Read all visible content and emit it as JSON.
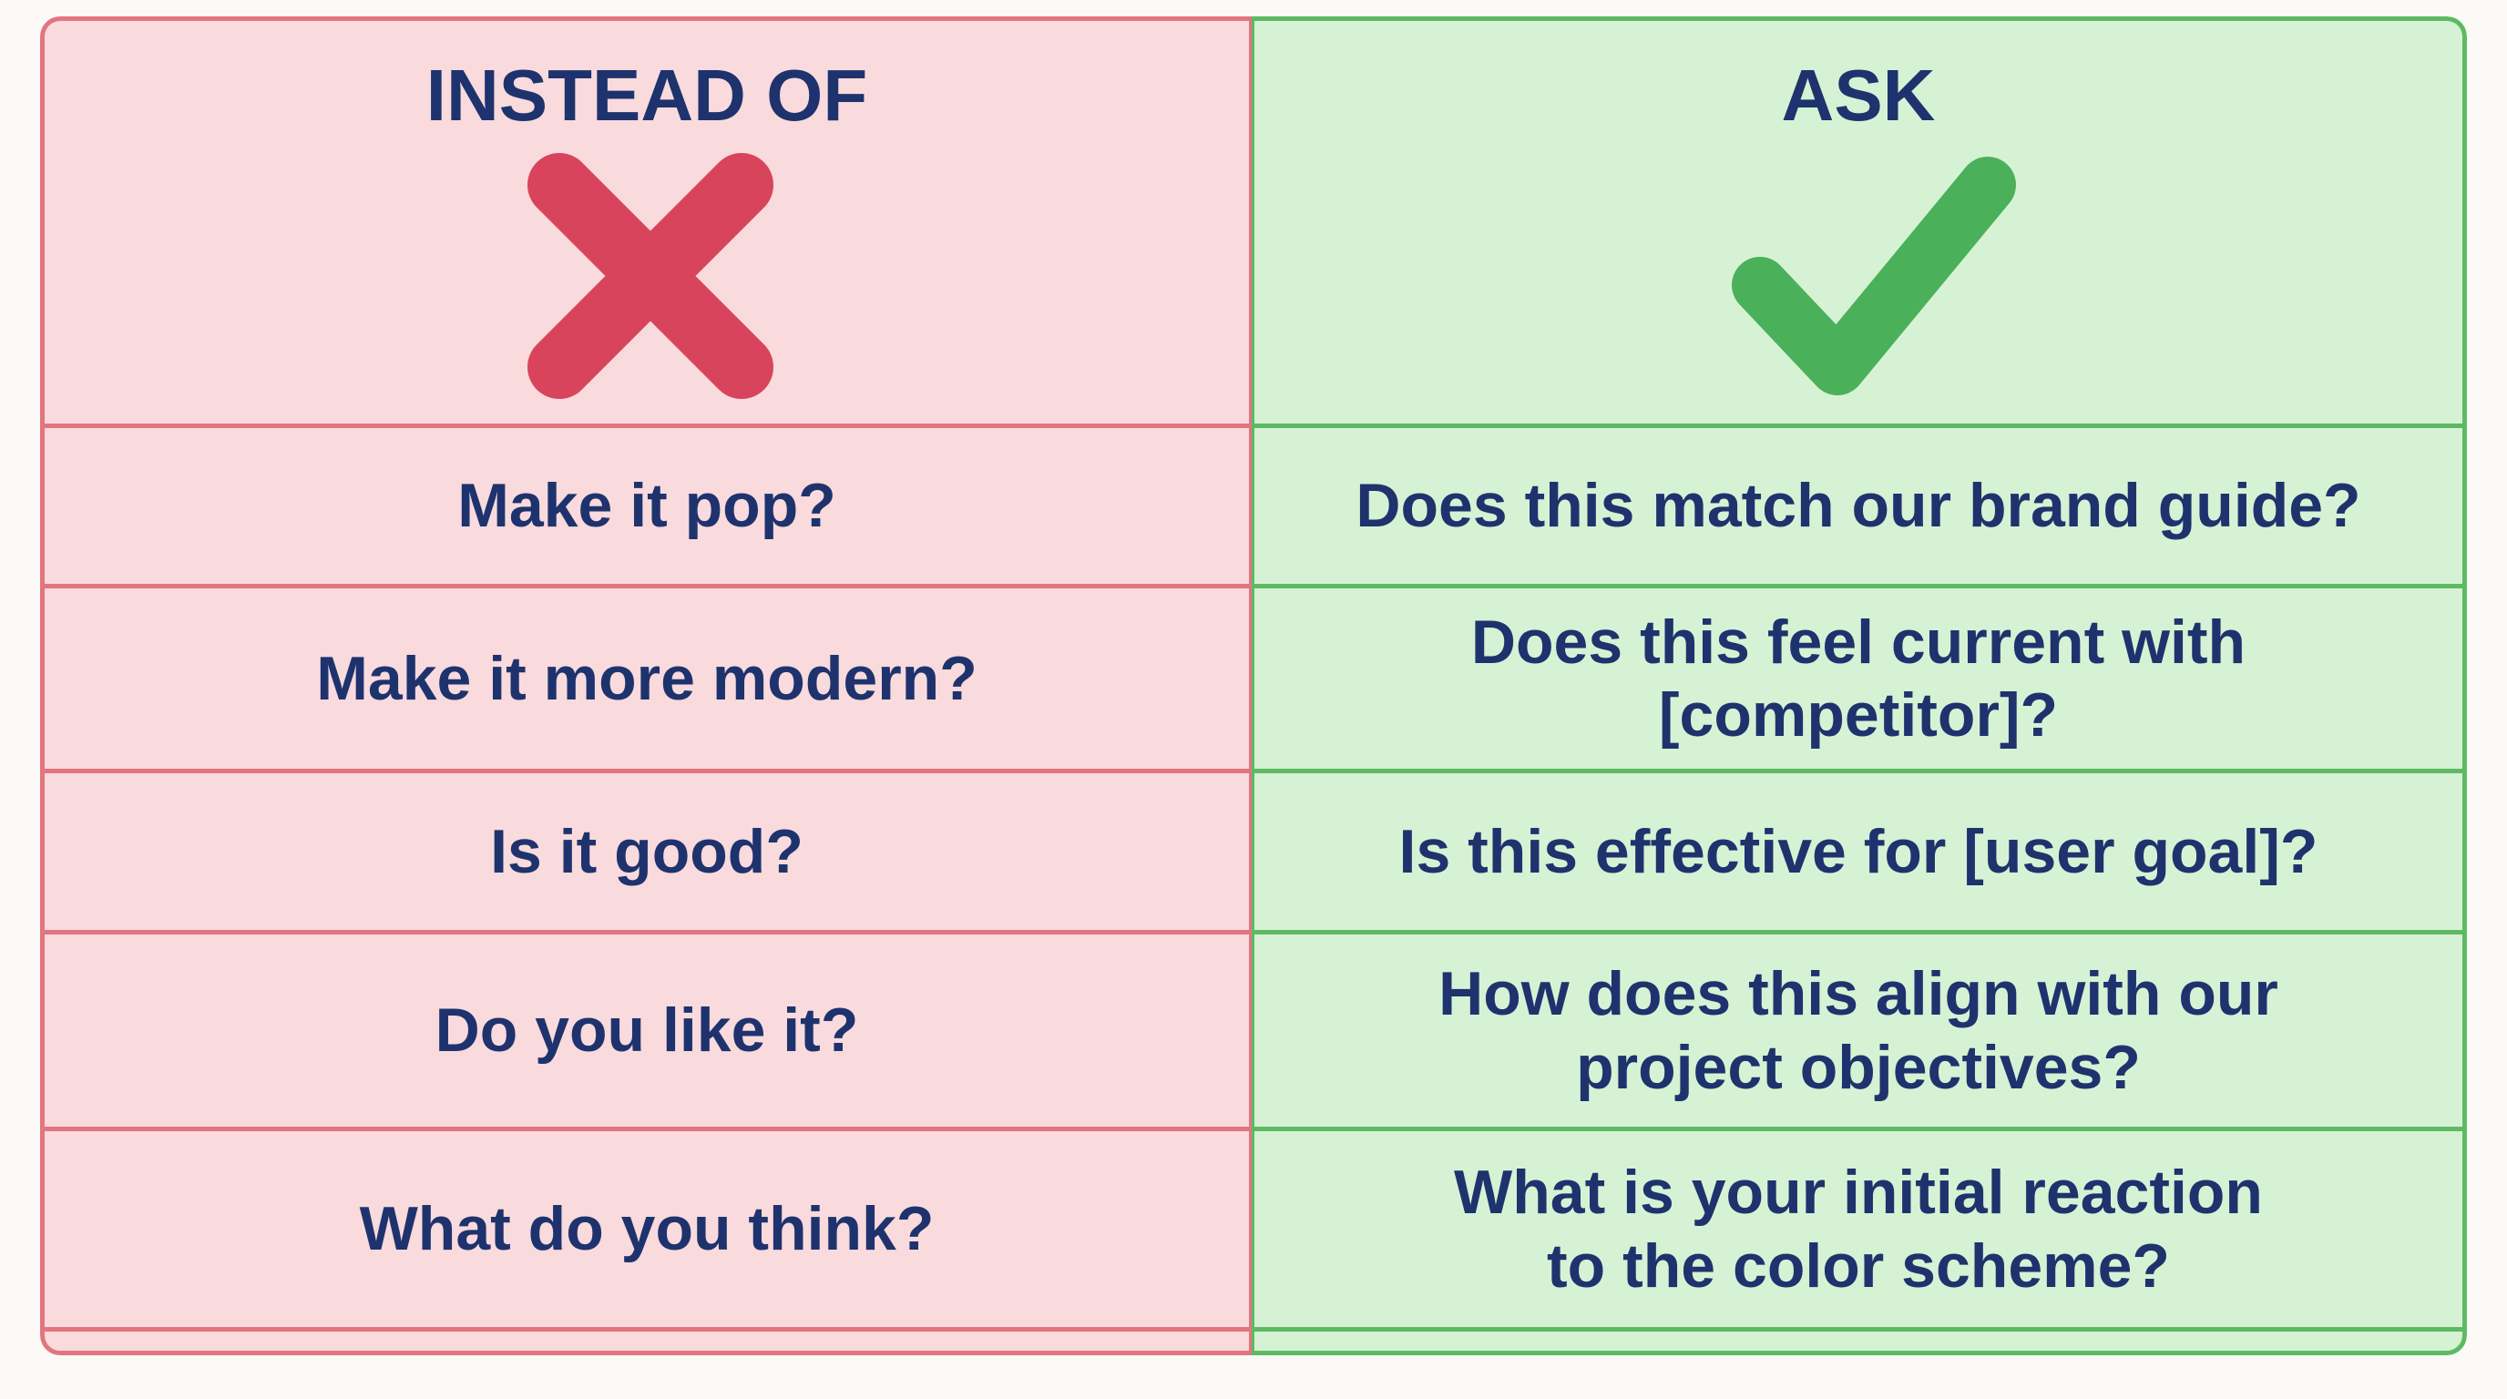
{
  "left": {
    "title": "INSTEAD OF",
    "items": [
      [
        "Make it pop?"
      ],
      [
        "Make it more modern?"
      ],
      [
        "Is it good?"
      ],
      [
        "Do you like it?"
      ],
      [
        "What do you think?"
      ]
    ]
  },
  "right": {
    "title": "ASK",
    "items": [
      [
        "Does this match our brand guide?"
      ],
      [
        "Does this feel current with",
        "[competitor]?"
      ],
      [
        "Is this effective for [user goal]?"
      ],
      [
        "How does this align with our",
        "project objectives?"
      ],
      [
        "What is your initial reaction",
        "to the color scheme?"
      ]
    ]
  }
}
